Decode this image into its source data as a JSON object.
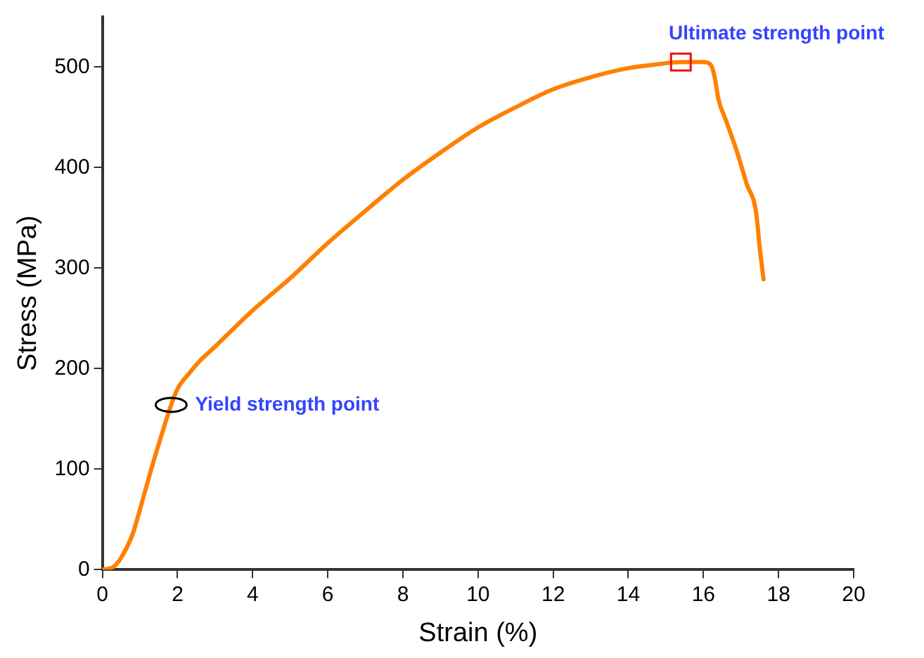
{
  "chart_data": {
    "type": "line",
    "xlabel": "Strain (%)",
    "ylabel": "Stress (MPa)",
    "xlim": [
      0,
      20
    ],
    "xticks": [
      0,
      2,
      4,
      6,
      8,
      10,
      12,
      14,
      16,
      18,
      20
    ],
    "ylim": [
      0,
      550
    ],
    "yticks": [
      0,
      100,
      200,
      300,
      400,
      500
    ],
    "grid": false,
    "legend": false,
    "marker": "none",
    "line_style": "solid",
    "series": [
      {
        "color": "#ff8000",
        "x": [
          0,
          0.3,
          0.5,
          0.8,
          1,
          1.3,
          1.5,
          1.83,
          2,
          2.3,
          2.6,
          3,
          4,
          5,
          6,
          7,
          8,
          9,
          10,
          11,
          12,
          13,
          14,
          14.8,
          15.4,
          16,
          16.2,
          16.3,
          16.4,
          16.6,
          16.9,
          17.15,
          17.4,
          17.5,
          17.6
        ],
        "values": [
          0,
          3,
          12,
          35,
          60,
          100,
          125,
          164,
          180,
          195,
          208,
          222,
          258,
          290,
          325,
          357,
          388,
          415,
          440,
          460,
          478,
          490,
          499,
          503,
          505,
          505,
          502,
          490,
          468,
          447,
          415,
          384,
          356,
          320,
          289
        ]
      }
    ],
    "annotations": [
      {
        "text": "Yield strength point",
        "x": 1.83,
        "y": 164
      },
      {
        "text": "Ultimate strength point",
        "x": 15.4,
        "y": 505
      }
    ]
  }
}
